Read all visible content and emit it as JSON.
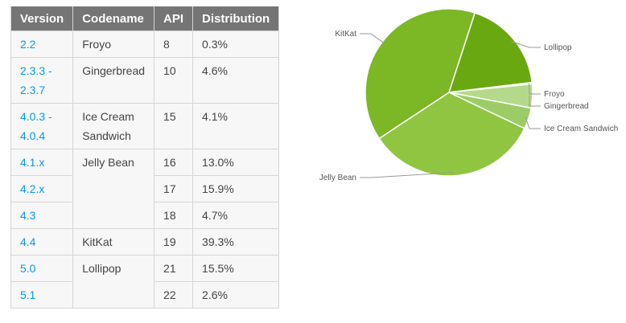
{
  "table": {
    "headers": [
      "Version",
      "Codename",
      "API",
      "Distribution"
    ],
    "rows": [
      {
        "version": "2.2",
        "codename": "Froyo",
        "api": "8",
        "distribution": "0.3%"
      },
      {
        "version": "2.3.3 -\n2.3.7",
        "codename": "Gingerbread",
        "api": "10",
        "distribution": "4.6%"
      },
      {
        "version": "4.0.3 -\n4.0.4",
        "codename": "Ice Cream\nSandwich",
        "api": "15",
        "distribution": "4.1%"
      },
      {
        "version": "4.1.x",
        "codename": "Jelly Bean",
        "api": "16",
        "distribution": "13.0%"
      },
      {
        "version": "4.2.x",
        "codename": "",
        "api": "17",
        "distribution": "15.9%"
      },
      {
        "version": "4.3",
        "codename": "",
        "api": "18",
        "distribution": "4.7%"
      },
      {
        "version": "4.4",
        "codename": "KitKat",
        "api": "19",
        "distribution": "39.3%"
      },
      {
        "version": "5.0",
        "codename": "Lollipop",
        "api": "21",
        "distribution": "15.5%"
      },
      {
        "version": "5.1",
        "codename": "",
        "api": "22",
        "distribution": "2.6%"
      }
    ]
  },
  "chart_data": {
    "type": "pie",
    "title": "",
    "slices": [
      {
        "label": "Lollipop",
        "value": 18.1,
        "color": "#6aa811"
      },
      {
        "label": "Froyo",
        "value": 0.3,
        "color": "#a7d46b"
      },
      {
        "label": "Gingerbread",
        "value": 4.6,
        "color": "#b5d98a"
      },
      {
        "label": "Ice Cream Sandwich",
        "value": 4.1,
        "color": "#9ccc65"
      },
      {
        "label": "Jelly Bean",
        "value": 33.6,
        "color": "#8fc541"
      },
      {
        "label": "KitKat",
        "value": 39.3,
        "color": "#7cb726"
      }
    ]
  }
}
